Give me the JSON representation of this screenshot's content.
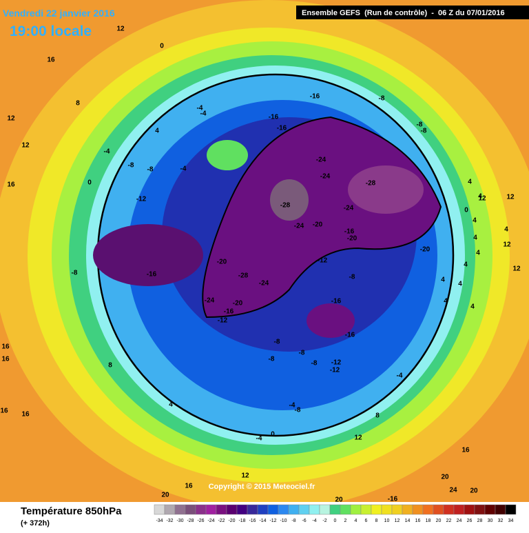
{
  "header": {
    "date": "Vendredi 22 janvier 2016",
    "time": "19:00 locale",
    "run": "Ensemble GEFS  (Run de contrôle)  -  06 Z du 07/01/2016"
  },
  "map": {
    "labels": [
      12,
      16,
      0,
      8,
      12,
      12,
      16,
      -4,
      -4,
      4,
      -4,
      0,
      -8,
      -8,
      -4,
      -12,
      -16,
      -16,
      -16,
      -8,
      -8,
      -8,
      -24,
      -24,
      -28,
      -28,
      -24,
      -24,
      -20,
      -16,
      -20,
      -20,
      -12,
      -8,
      -16,
      -20,
      -28,
      -24,
      -20,
      -24,
      -16,
      -12,
      -16,
      -16,
      -8,
      -8,
      -8,
      -8,
      -12,
      -12,
      -8,
      8,
      4,
      16,
      16,
      16,
      16,
      -4,
      8,
      12,
      -4,
      0,
      -8,
      -4,
      16,
      20,
      24,
      20,
      20,
      16,
      12,
      20,
      -16,
      12,
      12,
      4,
      12,
      12,
      4,
      4,
      0,
      4,
      4,
      4,
      4,
      4,
      4,
      4,
      4
    ],
    "copyright": "Copyright © 2015 Meteociel.fr"
  },
  "legend": {
    "title": "Température 850hPa",
    "subtitle": "(+ 372h)",
    "ticks": [
      -34,
      -32,
      -30,
      -28,
      -26,
      -24,
      -22,
      -20,
      -18,
      -16,
      -14,
      -12,
      -10,
      -8,
      -6,
      -4,
      -2,
      0,
      2,
      4,
      6,
      8,
      10,
      12,
      14,
      16,
      18,
      20,
      22,
      24,
      26,
      28,
      30,
      32,
      34
    ],
    "colors": [
      "#d8d8d8",
      "#b0a8b0",
      "#907090",
      "#7a4f7a",
      "#8a308a",
      "#a020a0",
      "#7a1080",
      "#5a0070",
      "#420080",
      "#38289a",
      "#2040c0",
      "#1060e0",
      "#2c88f0",
      "#40b0f0",
      "#60d0f0",
      "#90f0f0",
      "#b8f4e0",
      "#40d080",
      "#60e060",
      "#a0f040",
      "#c8f030",
      "#f0f020",
      "#f0e020",
      "#f0d020",
      "#f0b020",
      "#f09020",
      "#f07020",
      "#e05020",
      "#d03020",
      "#c02020",
      "#a01010",
      "#801010",
      "#600000",
      "#400000",
      "#000000"
    ]
  }
}
